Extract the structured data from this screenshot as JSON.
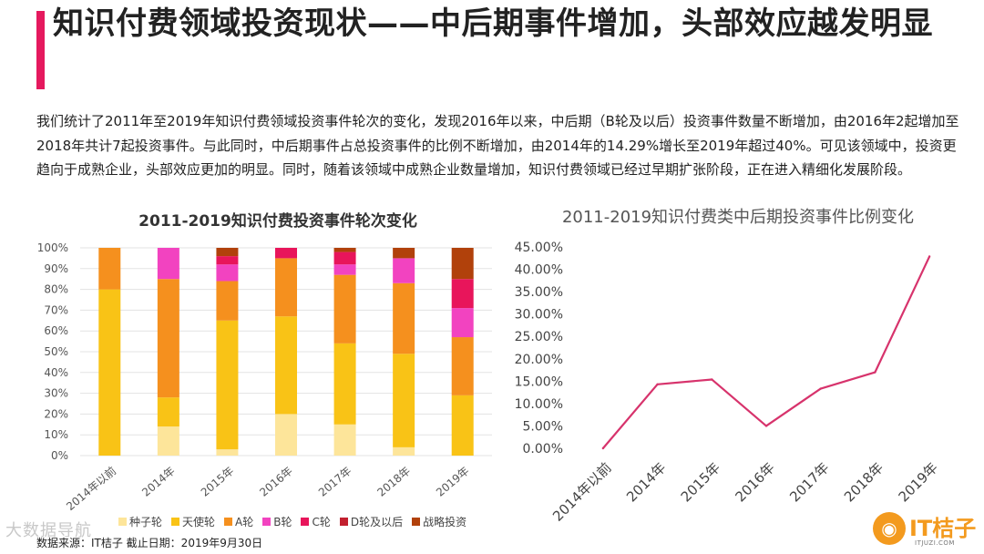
{
  "header": {
    "title": "知识付费领域投资现状——中后期事件增加，头部效应越发明显",
    "accent_color": "#e5195e"
  },
  "description": "我们统计了2011年至2019年知识付费领域投资事件轮次的变化，发现2016年以来，中后期（B轮及以后）投资事件数量不断增加，由2016年2起增加至2018年共计7起投资事件。与此同时，中后期事件占总投资事件的比例不断增加，由2014年的14.29%增长至2019年超过40%。可见该领域中，投资更趋向于成熟企业，头部效应更加的明显。同时，随着该领域中成熟企业数量增加，知识付费领域已经过早期扩张阶段，正在进入精细化发展阶段。",
  "chart_data": [
    {
      "type": "bar",
      "stacked": true,
      "title": "2011-2019知识付费投资事件轮次变化",
      "categories": [
        "2014年以前",
        "2014年",
        "2015年",
        "2016年",
        "2017年",
        "2018年",
        "2019年"
      ],
      "yticks": [
        "0%",
        "10%",
        "20%",
        "30%",
        "40%",
        "50%",
        "60%",
        "70%",
        "80%",
        "90%",
        "100%"
      ],
      "ylim": [
        0,
        100
      ],
      "grid": true,
      "legend_position": "bottom",
      "series": [
        {
          "name": "种子轮",
          "color": "#fde59a",
          "values": [
            0,
            14,
            3,
            20,
            15,
            4,
            0
          ]
        },
        {
          "name": "天使轮",
          "color": "#f9c316",
          "values": [
            80,
            14,
            62,
            47,
            39,
            45,
            29
          ]
        },
        {
          "name": "A轮",
          "color": "#f5901e",
          "values": [
            20,
            57,
            19,
            28,
            33,
            34,
            28
          ]
        },
        {
          "name": "B轮",
          "color": "#f243c0",
          "values": [
            0,
            15,
            8,
            0,
            5,
            12,
            14
          ]
        },
        {
          "name": "C轮",
          "color": "#e8155b",
          "values": [
            0,
            0,
            4,
            5,
            6,
            0,
            14
          ]
        },
        {
          "name": "D轮及以后",
          "color": "#c2202f",
          "values": [
            0,
            0,
            0,
            0,
            0,
            0,
            0
          ]
        },
        {
          "name": "战略投资",
          "color": "#b1410b",
          "values": [
            0,
            0,
            4,
            0,
            2,
            5,
            15
          ]
        }
      ]
    },
    {
      "type": "line",
      "title": "2011-2019知识付费类中后期投资事件比例变化",
      "categories": [
        "2014年以前",
        "2014年",
        "2015年",
        "2016年",
        "2017年",
        "2018年",
        "2019年"
      ],
      "yticks": [
        "0.00%",
        "5.00%",
        "10.00%",
        "15.00%",
        "20.00%",
        "25.00%",
        "30.00%",
        "35.00%",
        "40.00%",
        "45.00%"
      ],
      "ylim": [
        0,
        45
      ],
      "grid": false,
      "series": [
        {
          "color": "#d7336c",
          "values": [
            0,
            14.29,
            15.38,
            5.0,
            13.33,
            17.0,
            42.86
          ]
        }
      ]
    }
  ],
  "footer": {
    "source": "数据来源：IT桔子 截止日期：2019年9月30日",
    "watermark": "大数据导航"
  },
  "logo": {
    "glyph": "◉",
    "name": "IT桔子",
    "sub": "ITJUZI.COM",
    "color": "#f39a1e"
  }
}
